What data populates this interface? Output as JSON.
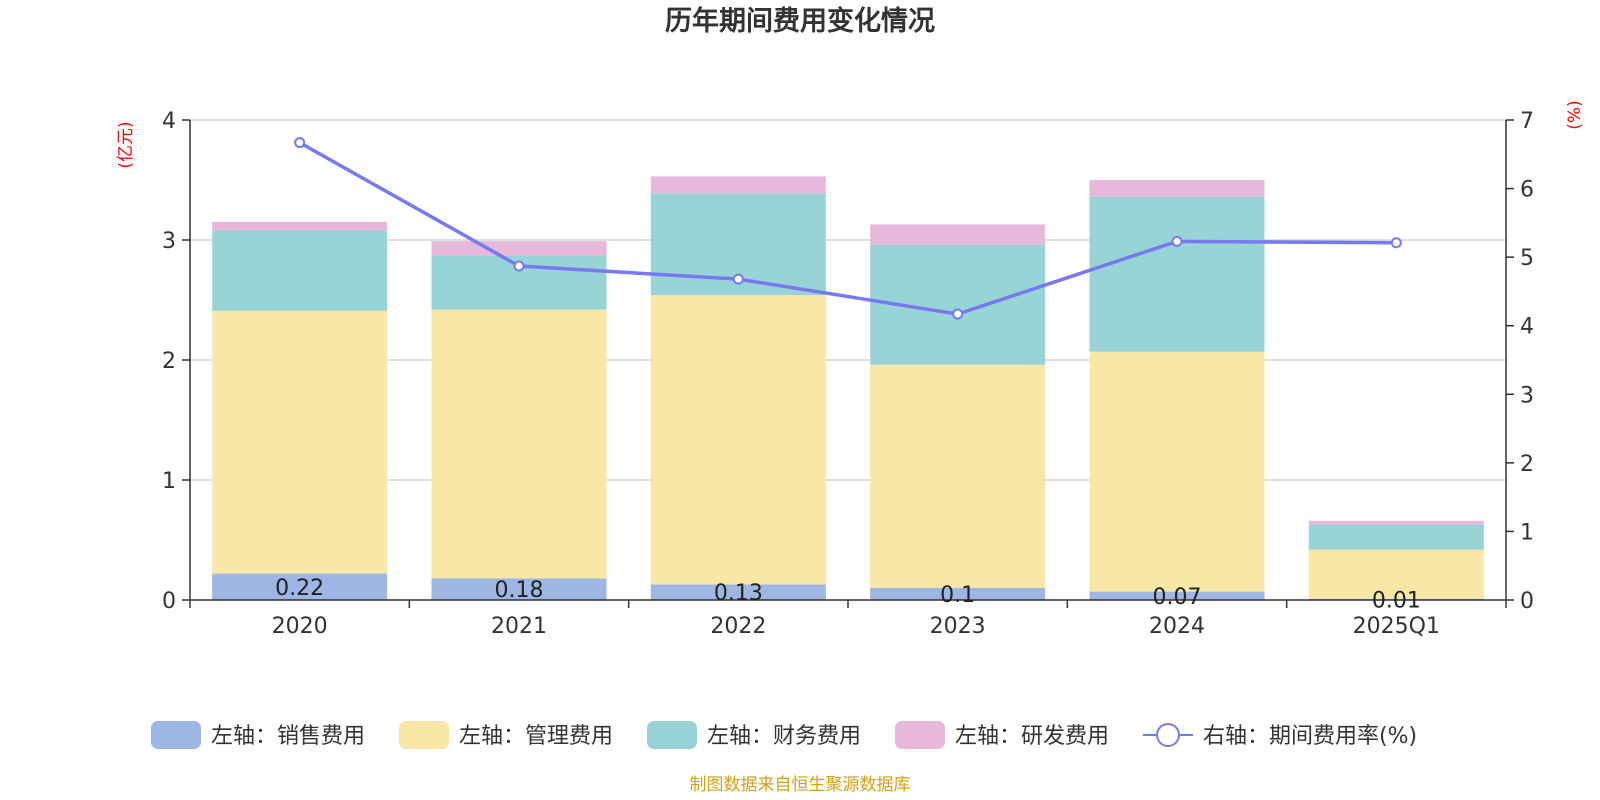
{
  "chart_data": {
    "type": "bar",
    "stacked": true,
    "title": "历年期间费用变化情况",
    "categories": [
      "2020",
      "2021",
      "2022",
      "2023",
      "2024",
      "2025Q1"
    ],
    "left_axis": {
      "unit_label": "(亿元)",
      "ylim": [
        0,
        4
      ],
      "ticks": [
        "0",
        "1",
        "2",
        "3",
        "4"
      ]
    },
    "right_axis": {
      "unit_label": "(%)",
      "ylim": [
        0,
        7
      ],
      "ticks": [
        "0",
        "1",
        "2",
        "3",
        "4",
        "5",
        "6",
        "7"
      ]
    },
    "series": [
      {
        "name": "左轴：销售费用",
        "axis": "left",
        "color": "#9db6e3",
        "values": [
          0.22,
          0.18,
          0.13,
          0.1,
          0.07,
          0.01
        ],
        "labels": [
          "0.22",
          "0.18",
          "0.13",
          "0.1",
          "0.07",
          "0.01"
        ]
      },
      {
        "name": "左轴：管理费用",
        "axis": "left",
        "color": "#f8e7a6",
        "values": [
          2.19,
          2.24,
          2.41,
          1.86,
          2.0,
          0.41
        ]
      },
      {
        "name": "左轴：财务费用",
        "axis": "left",
        "color": "#98d4d5",
        "values": [
          0.67,
          0.45,
          0.85,
          1.0,
          1.29,
          0.21
        ]
      },
      {
        "name": "左轴：研发费用",
        "axis": "left",
        "color": "#e7b8d9",
        "values": [
          0.07,
          0.12,
          0.14,
          0.17,
          0.14,
          0.03
        ]
      },
      {
        "name": "右轴：期间费用率(%)",
        "axis": "right",
        "type": "line",
        "color": "#7878f0",
        "values": [
          6.67,
          4.87,
          4.68,
          4.17,
          5.23,
          5.21
        ]
      }
    ],
    "grid": true,
    "legend_position": "bottom"
  },
  "source_note": "制图数据来自恒生聚源数据库"
}
